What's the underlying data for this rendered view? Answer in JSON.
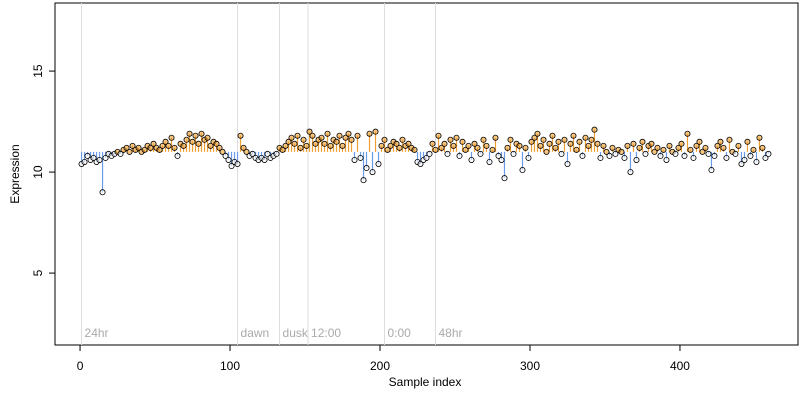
{
  "chart_data": {
    "type": "scatter",
    "xlabel": "Sample index",
    "ylabel": "Expression",
    "xlim": [
      -16.7,
      478.7
    ],
    "ylim": [
      1.44,
      18.37
    ],
    "xticks": [
      0,
      100,
      200,
      300,
      400
    ],
    "yticks": [
      5,
      10,
      15
    ],
    "baseline": 11,
    "color_above": "#f0a030",
    "color_below": "#6a9be8",
    "point_color": "#000000",
    "markers": [
      {
        "x": 1,
        "label": "24hr"
      },
      {
        "x": 105,
        "label": "dawn"
      },
      {
        "x": 133,
        "label": "dusk"
      },
      {
        "x": 152,
        "label": "12:00"
      },
      {
        "x": 203,
        "label": "0:00"
      },
      {
        "x": 237,
        "label": "48hr"
      }
    ],
    "marker_label_y": 2,
    "x": [
      1,
      3,
      5,
      7,
      9,
      11,
      13,
      15,
      17,
      19,
      21,
      23,
      25,
      27,
      29,
      31,
      33,
      35,
      37,
      39,
      41,
      43,
      45,
      47,
      49,
      51,
      53,
      55,
      57,
      59,
      61,
      63,
      65,
      67,
      69,
      71,
      73,
      75,
      77,
      79,
      81,
      83,
      85,
      87,
      89,
      91,
      93,
      95,
      97,
      99,
      101,
      103,
      105,
      107,
      109,
      111,
      113,
      115,
      117,
      119,
      121,
      123,
      125,
      127,
      129,
      131,
      133,
      135,
      137,
      139,
      141,
      143,
      145,
      147,
      149,
      151,
      153,
      155,
      157,
      159,
      161,
      163,
      165,
      167,
      169,
      171,
      173,
      175,
      177,
      179,
      181,
      183,
      185,
      187,
      189,
      191,
      193,
      195,
      197,
      199,
      201,
      203,
      205,
      207,
      209,
      211,
      213,
      215,
      217,
      219,
      221,
      223,
      225,
      227,
      229,
      231,
      233,
      235,
      237,
      239,
      241,
      243,
      245,
      247,
      249,
      251,
      253,
      255,
      257,
      259,
      261,
      263,
      265,
      267,
      269,
      271,
      273,
      275,
      277,
      279,
      281,
      283,
      285,
      287,
      289,
      291,
      293,
      295,
      297,
      299,
      301,
      303,
      305,
      307,
      309,
      311,
      313,
      315,
      317,
      319,
      321,
      323,
      325,
      327,
      329,
      331,
      333,
      335,
      337,
      339,
      341,
      343,
      345,
      347,
      349,
      351,
      353,
      355,
      357,
      359,
      361,
      363,
      365,
      367,
      369,
      371,
      373,
      375,
      377,
      379,
      381,
      383,
      385,
      387,
      389,
      391,
      393,
      395,
      397,
      399,
      401,
      403,
      405,
      407,
      409,
      411,
      413,
      415,
      417,
      419,
      421,
      423,
      425,
      427,
      429,
      431,
      433,
      435,
      437,
      439,
      441,
      443,
      445,
      447,
      449,
      451,
      453,
      455,
      457,
      459
    ],
    "values": [
      10.4,
      10.5,
      10.8,
      10.6,
      10.7,
      10.5,
      10.6,
      9.0,
      10.7,
      10.9,
      10.8,
      10.9,
      11.0,
      10.9,
      11.1,
      11.2,
      11.0,
      11.3,
      11.1,
      11.2,
      11.0,
      11.1,
      11.3,
      11.2,
      11.4,
      11.2,
      11.1,
      11.3,
      11.5,
      11.3,
      11.7,
      11.2,
      10.8,
      11.4,
      11.3,
      11.6,
      11.9,
      11.5,
      11.8,
      11.4,
      11.9,
      11.6,
      11.7,
      11.3,
      11.5,
      11.4,
      11.2,
      11.0,
      10.8,
      10.6,
      10.3,
      10.5,
      10.4,
      11.8,
      11.2,
      11.0,
      10.8,
      10.9,
      10.7,
      10.6,
      10.7,
      10.6,
      10.9,
      10.7,
      10.8,
      10.9,
      11.2,
      11.1,
      11.3,
      11.5,
      11.7,
      11.4,
      11.8,
      11.2,
      11.6,
      11.3,
      12.0,
      11.8,
      11.4,
      11.6,
      11.7,
      11.4,
      11.9,
      11.3,
      11.6,
      11.5,
      11.8,
      11.3,
      11.7,
      11.9,
      11.6,
      10.6,
      11.8,
      10.7,
      9.6,
      10.2,
      11.9,
      10.0,
      12.0,
      10.4,
      11.3,
      11.6,
      11.1,
      11.3,
      11.5,
      11.4,
      11.2,
      11.6,
      11.3,
      11.4,
      11.2,
      11.1,
      10.5,
      10.4,
      10.6,
      10.7,
      10.9,
      11.4,
      11.1,
      11.8,
      11.2,
      11.4,
      10.9,
      11.6,
      11.3,
      11.7,
      10.8,
      11.5,
      11.1,
      11.3,
      10.6,
      11.4,
      11.2,
      10.9,
      11.6,
      11.3,
      10.5,
      11.1,
      11.7,
      10.8,
      10.6,
      9.7,
      11.2,
      11.6,
      10.9,
      11.4,
      11.3,
      10.1,
      11.2,
      10.7,
      11.5,
      11.7,
      11.9,
      11.3,
      11.6,
      11.0,
      11.4,
      11.8,
      11.2,
      11.5,
      10.9,
      11.6,
      10.4,
      11.4,
      11.8,
      11.1,
      11.5,
      10.8,
      11.7,
      11.3,
      11.6,
      12.1,
      11.4,
      10.7,
      11.3,
      11.0,
      10.8,
      11.2,
      10.9,
      11.1,
      11.0,
      10.7,
      11.3,
      10.0,
      11.4,
      10.6,
      11.2,
      11.5,
      10.9,
      11.3,
      11.4,
      11.0,
      11.2,
      10.8,
      11.1,
      10.6,
      11.3,
      11.0,
      10.9,
      11.2,
      11.4,
      10.8,
      11.9,
      11.1,
      10.7,
      11.3,
      11.5,
      11.0,
      11.2,
      10.9,
      10.1,
      10.8,
      11.3,
      11.5,
      11.2,
      10.7,
      11.6,
      11.0,
      10.9,
      11.3,
      10.4,
      10.6,
      11.5,
      10.8,
      11.1,
      10.5,
      11.7,
      11.2,
      10.7,
      10.9
    ]
  }
}
